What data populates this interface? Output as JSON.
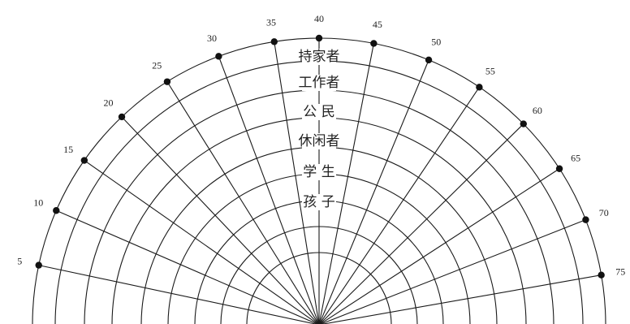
{
  "diagram": {
    "age_marks": [
      "5",
      "10",
      "15",
      "20",
      "25",
      "30",
      "35",
      "40",
      "45",
      "50",
      "55",
      "60",
      "65",
      "70",
      "75"
    ],
    "roles": [
      "持家者",
      "工作者",
      "公 民",
      "休闲者",
      "学 生",
      "孩 子"
    ]
  }
}
